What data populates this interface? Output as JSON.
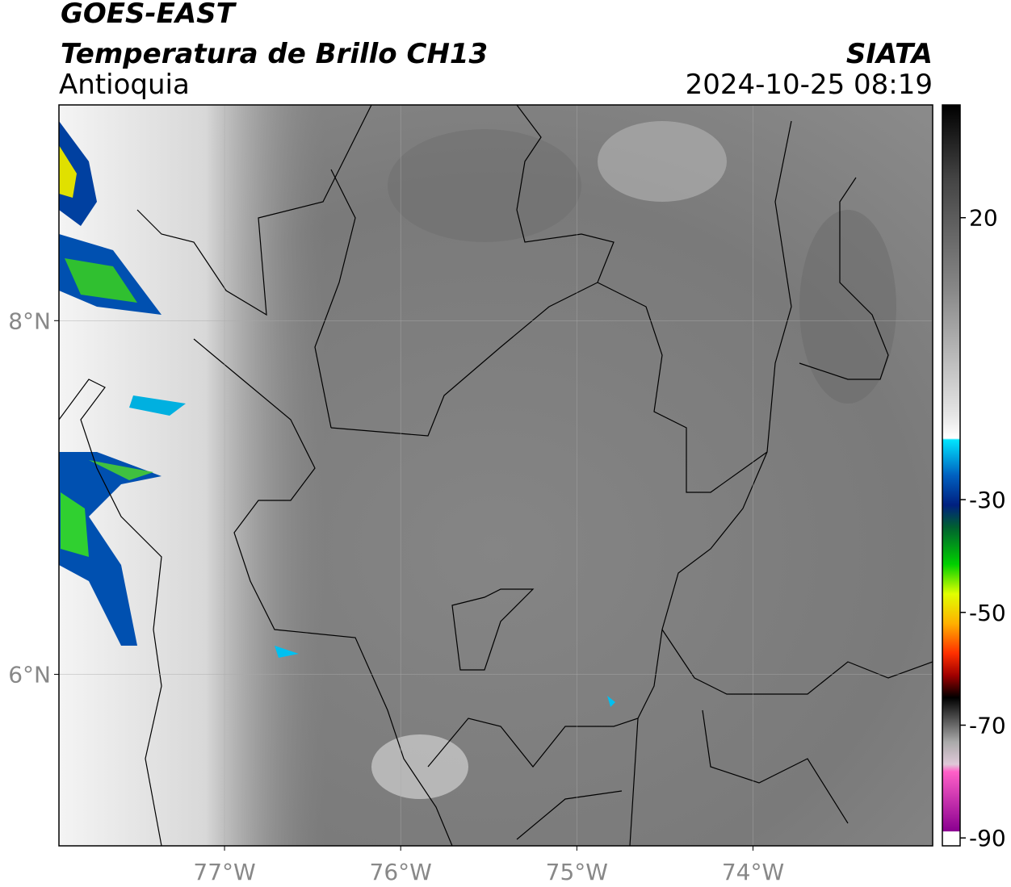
{
  "header": {
    "title": "GOES-EAST",
    "subtitle": "Temperatura de Brillo CH13",
    "region": "Antioquia",
    "source": "SIATA",
    "datetime": "2024-10-25 08:19"
  },
  "map": {
    "xlim": [
      -77.94,
      -72.98
    ],
    "ylim": [
      5.03,
      9.22
    ],
    "xticks": [
      {
        "value": -77,
        "label": "77°W"
      },
      {
        "value": -76,
        "label": "76°W"
      },
      {
        "value": -75,
        "label": "75°W"
      },
      {
        "value": -74,
        "label": "74°W"
      }
    ],
    "yticks": [
      {
        "value": 8,
        "label": "8°N"
      },
      {
        "value": 6,
        "label": "6°N"
      }
    ],
    "grid": true
  },
  "colorbar": {
    "clim": [
      -91.4,
      40
    ],
    "ticks": [
      20,
      -30,
      -50,
      -70,
      -90
    ]
  }
}
